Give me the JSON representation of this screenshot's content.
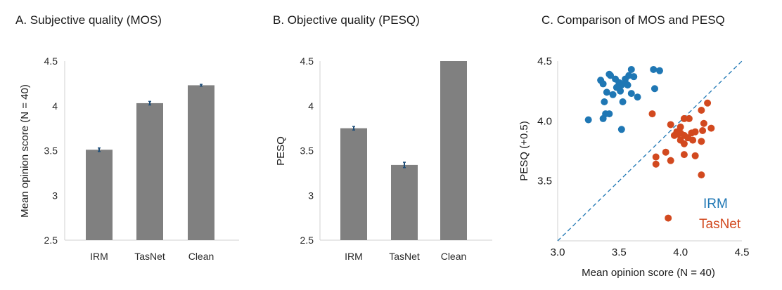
{
  "chart_data": [
    {
      "type": "bar",
      "title": "A. Subjective quality (MOS)",
      "xlabel": "",
      "ylabel": "Mean opinion score (N = 40)",
      "categories": [
        "IRM",
        "TasNet",
        "Clean"
      ],
      "values": [
        3.51,
        4.03,
        4.23
      ],
      "errors": [
        0.02,
        0.02,
        0.01
      ],
      "ylim": [
        2.5,
        4.5
      ],
      "yticks": [
        "2.5",
        "3",
        "3.5",
        "4",
        "4.5"
      ],
      "colors": {
        "bar": "#808080",
        "error": "#1f4e79"
      },
      "grid": false
    },
    {
      "type": "bar",
      "title": "B. Objective quality (PESQ)",
      "xlabel": "",
      "ylabel": "PESQ",
      "categories": [
        "IRM",
        "TasNet",
        "Clean"
      ],
      "values": [
        3.75,
        3.34,
        4.5
      ],
      "errors": [
        0.02,
        0.03,
        0
      ],
      "ylim": [
        2.5,
        4.5
      ],
      "yticks": [
        "2.5",
        "3",
        "3.5",
        "4",
        "4.5"
      ],
      "colors": {
        "bar": "#808080",
        "error": "#1f4e79"
      },
      "grid": false
    },
    {
      "type": "scatter",
      "title": "C. Comparison of MOS and PESQ",
      "xlabel": "Mean opinion score (N = 40)",
      "ylabel": "PESQ (+0.5)",
      "xlim": [
        3.0,
        4.5
      ],
      "ylim": [
        3.0,
        4.5
      ],
      "xticks": [
        "3.0",
        "3.5",
        "4.0",
        "4.5"
      ],
      "yticks": [
        "3.5",
        "4.0",
        "4.5"
      ],
      "diagonal": true,
      "legend_position": "bottom-right",
      "grid": false,
      "series": [
        {
          "name": "IRM",
          "color": "#1f77b4",
          "points": [
            [
              3.35,
              4.34
            ],
            [
              3.37,
              4.31
            ],
            [
              3.42,
              4.39
            ],
            [
              3.43,
              4.38
            ],
            [
              3.47,
              4.35
            ],
            [
              3.5,
              4.32
            ],
            [
              3.52,
              4.3
            ],
            [
              3.55,
              4.35
            ],
            [
              3.58,
              4.38
            ],
            [
              3.6,
              4.43
            ],
            [
              3.62,
              4.37
            ],
            [
              3.48,
              4.28
            ],
            [
              3.51,
              4.25
            ],
            [
              3.55,
              4.32
            ],
            [
              3.57,
              4.3
            ],
            [
              3.45,
              4.22
            ],
            [
              3.6,
              4.23
            ],
            [
              3.65,
              4.2
            ],
            [
              3.4,
              4.24
            ],
            [
              3.53,
              4.16
            ],
            [
              3.38,
              4.16
            ],
            [
              3.39,
              4.06
            ],
            [
              3.37,
              4.02
            ],
            [
              3.42,
              4.06
            ],
            [
              3.25,
              4.01
            ],
            [
              3.52,
              3.93
            ],
            [
              3.78,
              4.43
            ],
            [
              3.83,
              4.42
            ],
            [
              3.79,
              4.27
            ]
          ]
        },
        {
          "name": "TasNet",
          "color": "#d2491f",
          "points": [
            [
              3.77,
              4.06
            ],
            [
              3.92,
              3.97
            ],
            [
              3.97,
              3.91
            ],
            [
              4.0,
              3.95
            ],
            [
              3.95,
              3.88
            ],
            [
              4.03,
              3.88
            ],
            [
              4.06,
              3.86
            ],
            [
              4.09,
              3.9
            ],
            [
              4.0,
              3.84
            ],
            [
              4.03,
              3.81
            ],
            [
              3.98,
              3.89
            ],
            [
              4.1,
              3.84
            ],
            [
              4.12,
              3.91
            ],
            [
              4.18,
              3.92
            ],
            [
              4.19,
              3.98
            ],
            [
              4.17,
              4.09
            ],
            [
              4.22,
              4.15
            ],
            [
              4.25,
              3.94
            ],
            [
              4.17,
              3.83
            ],
            [
              4.07,
              4.02
            ],
            [
              4.03,
              4.02
            ],
            [
              4.0,
              3.9
            ],
            [
              3.88,
              3.74
            ],
            [
              3.8,
              3.7
            ],
            [
              3.8,
              3.64
            ],
            [
              3.92,
              3.67
            ],
            [
              4.03,
              3.72
            ],
            [
              4.12,
              3.71
            ],
            [
              4.17,
              3.55
            ],
            [
              3.9,
              3.19
            ]
          ]
        }
      ]
    }
  ]
}
